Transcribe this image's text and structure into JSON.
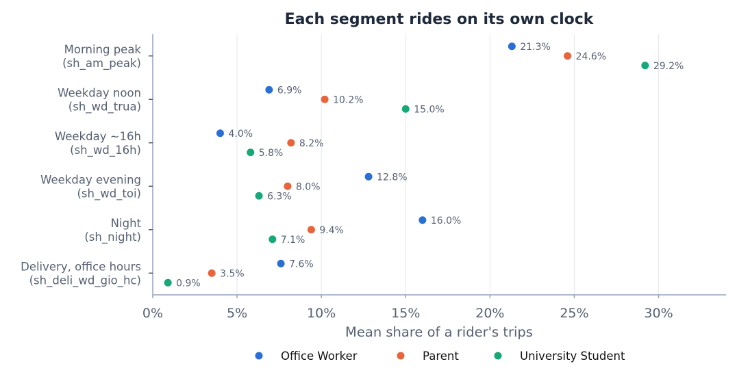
{
  "chart_data": {
    "type": "scatter",
    "title": "Each segment rides on its own clock",
    "xlabel": "Mean share of a rider's trips",
    "ylabel": "",
    "xlim": [
      0,
      34
    ],
    "x_ticks": [
      0,
      5,
      10,
      15,
      20,
      25,
      30
    ],
    "x_tick_labels": [
      "0%",
      "5%",
      "10%",
      "15%",
      "20%",
      "25%",
      "30%"
    ],
    "grid": "vertical",
    "legend_position": "bottom-center",
    "categories": [
      [
        "Morning peak",
        "(sh_am_peak)"
      ],
      [
        "Weekday noon",
        "(sh_wd_trua)"
      ],
      [
        "Weekday ~16h",
        "(sh_wd_16h)"
      ],
      [
        "Weekday evening",
        "(sh_wd_toi)"
      ],
      [
        "Night",
        "(sh_night)"
      ],
      [
        "Delivery, office hours",
        "(sh_deli_wd_gio_hc)"
      ]
    ],
    "series": [
      {
        "name": "Office Worker",
        "color": "#2a6fd6",
        "values": [
          21.3,
          6.9,
          4.0,
          12.8,
          16.0,
          7.6
        ],
        "labels": [
          "21.3%",
          "6.9%",
          "4.0%",
          "12.8%",
          "16.0%",
          "7.6%"
        ]
      },
      {
        "name": "Parent",
        "color": "#e8643a",
        "values": [
          24.6,
          10.2,
          8.2,
          8.0,
          9.4,
          3.5
        ],
        "labels": [
          "24.6%",
          "10.2%",
          "8.2%",
          "8.0%",
          "9.4%",
          "3.5%"
        ]
      },
      {
        "name": "University Student",
        "color": "#16a878",
        "values": [
          29.2,
          15.0,
          5.8,
          6.3,
          7.1,
          0.9
        ],
        "labels": [
          "29.2%",
          "15.0%",
          "5.8%",
          "6.3%",
          "7.1%",
          "0.9%"
        ]
      }
    ]
  }
}
